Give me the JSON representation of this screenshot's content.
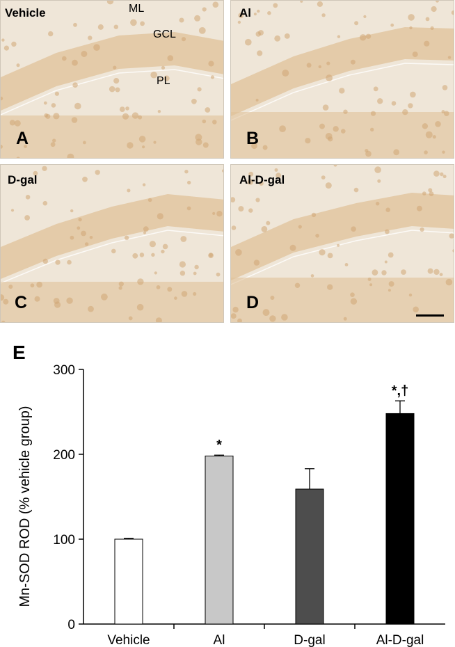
{
  "micrographs": [
    {
      "letter": "A",
      "group_label": "Vehicle",
      "regions": [
        "ML",
        "GCL",
        "PL"
      ]
    },
    {
      "letter": "B",
      "group_label": "Al"
    },
    {
      "letter": "C",
      "group_label": "D-gal"
    },
    {
      "letter": "D",
      "group_label": "Al-D-gal",
      "has_scale_bar": true
    }
  ],
  "colors": {
    "tissue_bg": "#efe6d8",
    "cell_layer": "#e0c29a",
    "neuron": "#cfa574",
    "bar_vehicle": "#ffffff",
    "bar_al": "#c8c8c8",
    "bar_dgal": "#4d4d4d",
    "bar_al_dgal": "#000000"
  },
  "chart_data": {
    "type": "bar",
    "panel_letter": "E",
    "ylabel": "Mn-SOD ROD (% vehicle group)",
    "xlabel": "",
    "ylim": [
      0,
      300
    ],
    "yticks": [
      0,
      100,
      200,
      300
    ],
    "categories": [
      "Vehicle",
      "Al",
      "D-gal",
      "Al-D-gal"
    ],
    "values": [
      100,
      198,
      159,
      248
    ],
    "errors": [
      1,
      1,
      24,
      15
    ],
    "annotations": [
      "",
      "*",
      "",
      "*,†"
    ],
    "grid": false
  }
}
